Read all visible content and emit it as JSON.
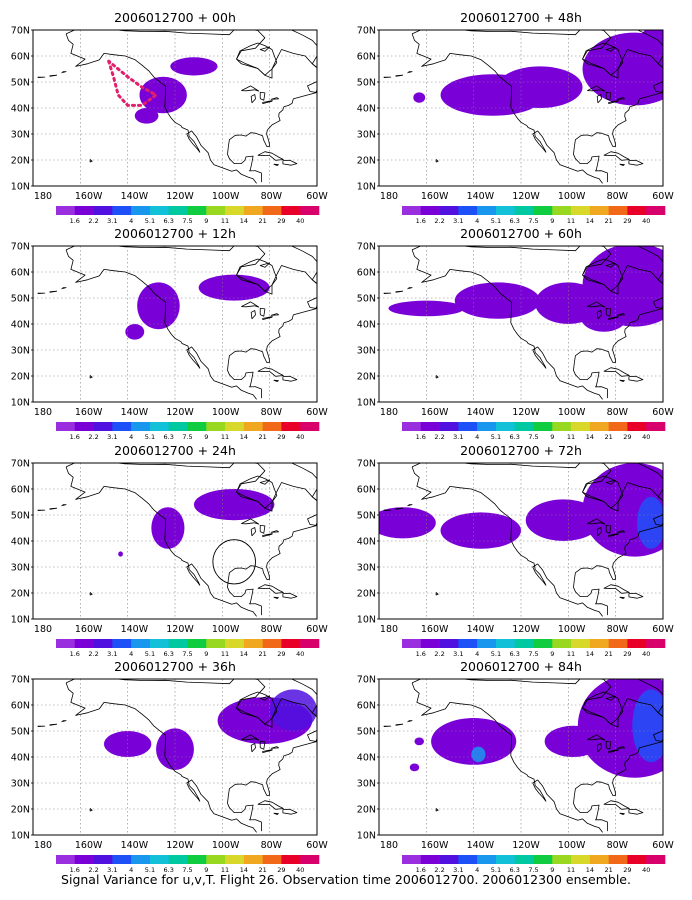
{
  "caption": "Signal Variance for u,v,T. Flight 26. Observation time 2006012700. 2006012300 ensemble.",
  "colors": {
    "ocean_bg": "#ffffff",
    "coast": "#000000",
    "grid": "#808080",
    "track": "#e0206a"
  },
  "chart_data": {
    "type": "heatmap",
    "xlim": [
      "180",
      "60W"
    ],
    "ylim": [
      "10N",
      "70N"
    ],
    "grid": true,
    "x_ticks": [
      "180",
      "160W",
      "140W",
      "120W",
      "100W",
      "80W",
      "60W"
    ],
    "y_ticks": [
      "10N",
      "20N",
      "30N",
      "40N",
      "50N",
      "60N",
      "70N"
    ],
    "colorbar": {
      "levels": [
        "1.6",
        "2.2",
        "3.1",
        "4",
        "5.1",
        "6.3",
        "7.5",
        "9",
        "11",
        "14",
        "21",
        "29",
        "40"
      ],
      "colors": [
        "#9a2fe0",
        "#7a00d8",
        "#5010e0",
        "#1e50f8",
        "#1996ee",
        "#12c0d8",
        "#00c8a0",
        "#10cc40",
        "#98d820",
        "#d8d82a",
        "#f0a820",
        "#f06818",
        "#e80028",
        "#d8006a"
      ]
    },
    "panels": [
      {
        "title": "2006012700 + 00h",
        "blobs": [
          {
            "lon": -125,
            "lat": 45,
            "rx": 10,
            "ry": 7,
            "level": 1
          },
          {
            "lon": -132,
            "lat": 37,
            "rx": 5,
            "ry": 3,
            "level": 1
          },
          {
            "lon": -112,
            "lat": 56,
            "rx": 10,
            "ry": 3.5,
            "level": 1
          }
        ],
        "track": [
          [
            -148,
            58
          ],
          [
            -146,
            52
          ],
          [
            -144,
            45
          ],
          [
            -140,
            41
          ],
          [
            -134,
            41
          ],
          [
            -128,
            45
          ],
          [
            -134,
            48
          ],
          [
            -140,
            52
          ],
          [
            -148,
            58
          ]
        ]
      },
      {
        "title": "2006012700 + 48h",
        "blobs": [
          {
            "lon": -132,
            "lat": 45,
            "rx": 22,
            "ry": 8,
            "level": 1
          },
          {
            "lon": -112,
            "lat": 48,
            "rx": 18,
            "ry": 8,
            "level": 1
          },
          {
            "lon": -72,
            "lat": 55,
            "rx": 22,
            "ry": 14,
            "level": 1
          },
          {
            "lon": -62,
            "lat": 65,
            "rx": 8,
            "ry": 7,
            "level": 1
          },
          {
            "lon": -163,
            "lat": 44,
            "rx": 2.5,
            "ry": 2,
            "level": 1
          }
        ]
      },
      {
        "title": "2006012700 + 12h",
        "blobs": [
          {
            "lon": -127,
            "lat": 47,
            "rx": 9,
            "ry": 9,
            "level": 1
          },
          {
            "lon": -137,
            "lat": 37,
            "rx": 4,
            "ry": 3,
            "level": 1
          },
          {
            "lon": -95,
            "lat": 54,
            "rx": 15,
            "ry": 5,
            "level": 1
          }
        ]
      },
      {
        "title": "2006012700 + 60h",
        "blobs": [
          {
            "lon": -160,
            "lat": 46,
            "rx": 16,
            "ry": 3,
            "level": 1
          },
          {
            "lon": -130,
            "lat": 49,
            "rx": 18,
            "ry": 7,
            "level": 1
          },
          {
            "lon": -100,
            "lat": 48,
            "rx": 14,
            "ry": 8,
            "level": 1
          },
          {
            "lon": -72,
            "lat": 55,
            "rx": 22,
            "ry": 16,
            "level": 1
          },
          {
            "lon": -85,
            "lat": 43,
            "rx": 10,
            "ry": 6,
            "level": 1
          }
        ]
      },
      {
        "title": "2006012700 + 24h",
        "blobs": [
          {
            "lon": -123,
            "lat": 45,
            "rx": 7,
            "ry": 8,
            "level": 1
          },
          {
            "lon": -95,
            "lat": 54,
            "rx": 17,
            "ry": 6,
            "level": 1
          },
          {
            "lon": -143,
            "lat": 35,
            "rx": 1,
            "ry": 1,
            "level": 1
          }
        ],
        "circle": {
          "lon": -95,
          "lat": 32,
          "r": 9
        }
      },
      {
        "title": "2006012700 + 72h",
        "blobs": [
          {
            "lon": -170,
            "lat": 47,
            "rx": 14,
            "ry": 6,
            "level": 1
          },
          {
            "lon": -137,
            "lat": 44,
            "rx": 17,
            "ry": 7,
            "level": 1
          },
          {
            "lon": -102,
            "lat": 48,
            "rx": 16,
            "ry": 8,
            "level": 1
          },
          {
            "lon": -72,
            "lat": 52,
            "rx": 22,
            "ry": 18,
            "level": 1
          },
          {
            "lon": -65,
            "lat": 47,
            "rx": 6,
            "ry": 10,
            "level": 3
          }
        ]
      },
      {
        "title": "2006012700 + 36h",
        "blobs": [
          {
            "lon": -140,
            "lat": 45,
            "rx": 10,
            "ry": 5,
            "level": 1
          },
          {
            "lon": -120,
            "lat": 43,
            "rx": 8,
            "ry": 8,
            "level": 1
          },
          {
            "lon": -82,
            "lat": 54,
            "rx": 20,
            "ry": 9,
            "level": 1
          },
          {
            "lon": -70,
            "lat": 58,
            "rx": 10,
            "ry": 8,
            "level": 2
          }
        ]
      },
      {
        "title": "2006012700 + 84h",
        "blobs": [
          {
            "lon": -140,
            "lat": 46,
            "rx": 18,
            "ry": 9,
            "level": 1
          },
          {
            "lon": -98,
            "lat": 46,
            "rx": 12,
            "ry": 6,
            "level": 1
          },
          {
            "lon": -72,
            "lat": 52,
            "rx": 24,
            "ry": 20,
            "level": 1
          },
          {
            "lon": -65,
            "lat": 52,
            "rx": 8,
            "ry": 14,
            "level": 3
          },
          {
            "lon": -138,
            "lat": 41,
            "rx": 3,
            "ry": 3,
            "level": 4
          },
          {
            "lon": -165,
            "lat": 36,
            "rx": 2,
            "ry": 1.5,
            "level": 1
          },
          {
            "lon": -163,
            "lat": 46,
            "rx": 2,
            "ry": 1.5,
            "level": 1
          }
        ]
      }
    ]
  }
}
